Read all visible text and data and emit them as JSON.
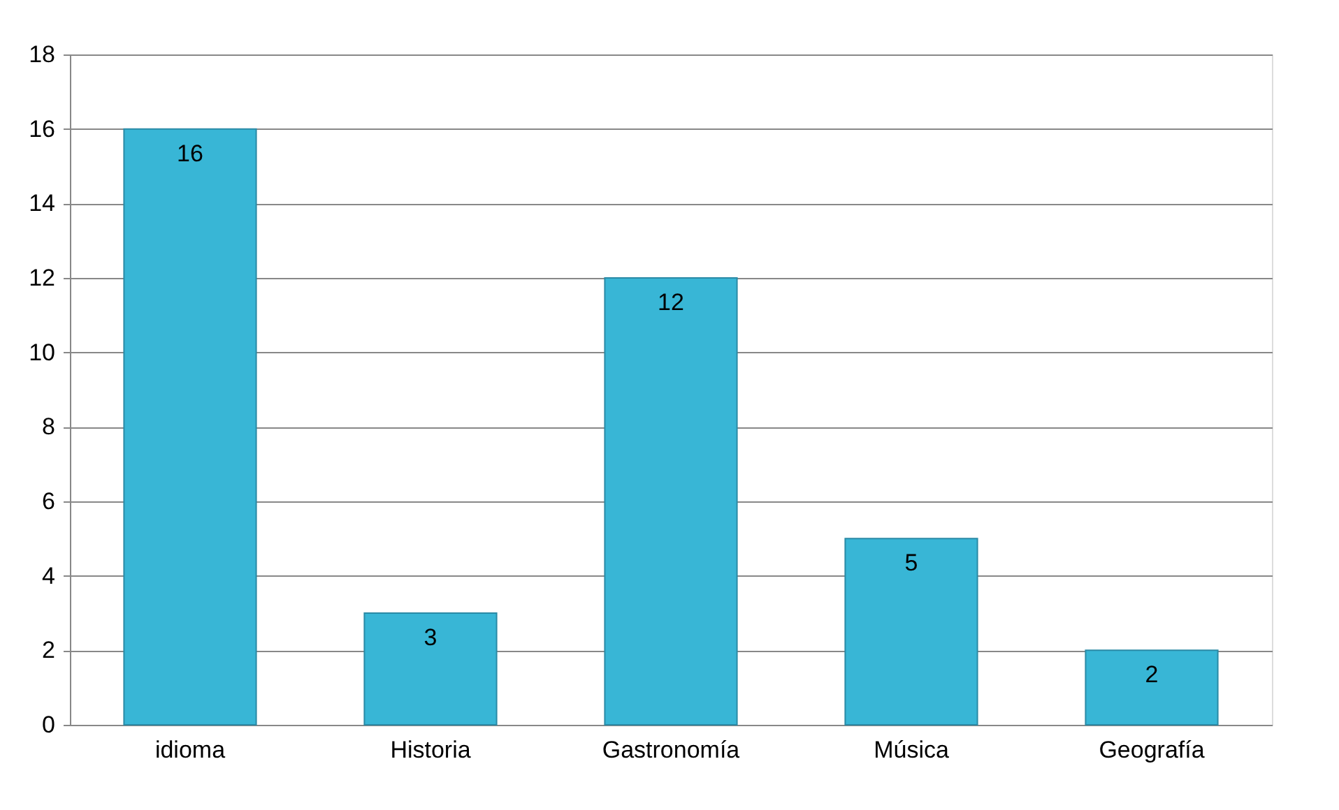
{
  "chart_data": {
    "type": "bar",
    "categories": [
      "idioma",
      "Historia",
      "Gastronomía",
      "Música",
      "Geografía"
    ],
    "values": [
      16,
      3,
      12,
      5,
      2
    ],
    "color": "#38b6d6",
    "ylim": [
      0,
      18
    ],
    "yticks": [
      0,
      2,
      4,
      6,
      8,
      10,
      12,
      14,
      16,
      18
    ],
    "grid": "y",
    "data_labels": true
  }
}
